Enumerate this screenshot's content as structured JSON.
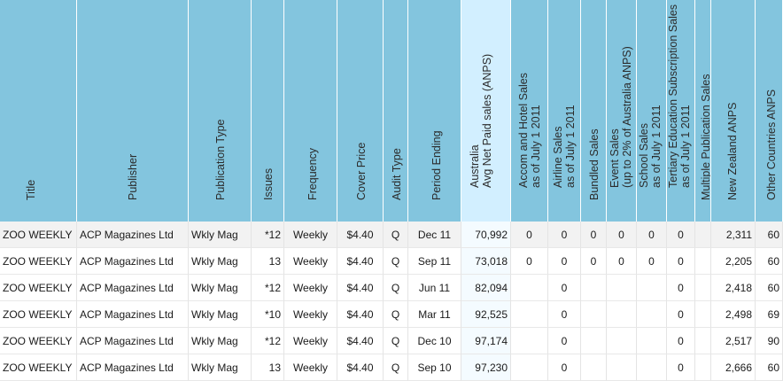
{
  "table": {
    "columns": [
      {
        "key": "title",
        "label": "Title"
      },
      {
        "key": "publisher",
        "label": "Publisher"
      },
      {
        "key": "pub_type",
        "label": "Publication Type"
      },
      {
        "key": "issues",
        "label": "Issues"
      },
      {
        "key": "frequency",
        "label": "Frequency"
      },
      {
        "key": "cover_price",
        "label": "Cover Price"
      },
      {
        "key": "audit_type",
        "label": "Audit Type"
      },
      {
        "key": "period_ending",
        "label": "Period Ending"
      },
      {
        "key": "aus_anps",
        "label": "Australia\nAvg Net Paid sales (ANPS)"
      },
      {
        "key": "accom_hotel",
        "label": "Accom and Hotel Sales\nas of July 1 2011"
      },
      {
        "key": "airline",
        "label": "Airline Sales\nas of July 1 2011"
      },
      {
        "key": "bundled",
        "label": "Bundled Sales"
      },
      {
        "key": "event",
        "label": "Event Sales\n(up to 2% of Australia ANPS)"
      },
      {
        "key": "school",
        "label": "School Sales\nas of July 1 2011"
      },
      {
        "key": "tertiary",
        "label": "Tertiary Education Subscription Sales\nas of July 1 2011"
      },
      {
        "key": "multiple",
        "label": "Multiple Publication Sales"
      },
      {
        "key": "nz_anps",
        "label": "New Zealand ANPS"
      },
      {
        "key": "other_anps",
        "label": "Other Countries ANPS"
      }
    ],
    "rows": [
      [
        "ZOO WEEKLY",
        "ACP Magazines Ltd",
        "Wkly Mag",
        "*12",
        "Weekly",
        "$4.40",
        "Q",
        "Dec 11",
        "70,992",
        "0",
        "0",
        "0",
        "0",
        "0",
        "0",
        "",
        "2,311",
        "60"
      ],
      [
        "ZOO WEEKLY",
        "ACP Magazines Ltd",
        "Wkly Mag",
        "13",
        "Weekly",
        "$4.40",
        "Q",
        "Sep 11",
        "73,018",
        "0",
        "0",
        "0",
        "0",
        "0",
        "0",
        "",
        "2,205",
        "60"
      ],
      [
        "ZOO WEEKLY",
        "ACP Magazines Ltd",
        "Wkly Mag",
        "*12",
        "Weekly",
        "$4.40",
        "Q",
        "Jun 11",
        "82,094",
        "",
        "0",
        "",
        "",
        "",
        "0",
        "",
        "2,418",
        "60"
      ],
      [
        "ZOO WEEKLY",
        "ACP Magazines Ltd",
        "Wkly Mag",
        "*10",
        "Weekly",
        "$4.40",
        "Q",
        "Mar 11",
        "92,525",
        "",
        "0",
        "",
        "",
        "",
        "0",
        "",
        "2,498",
        "69"
      ],
      [
        "ZOO WEEKLY",
        "ACP Magazines Ltd",
        "Wkly Mag",
        "*12",
        "Weekly",
        "$4.40",
        "Q",
        "Dec 10",
        "97,174",
        "",
        "0",
        "",
        "",
        "",
        "0",
        "",
        "2,517",
        "90"
      ],
      [
        "ZOO WEEKLY",
        "ACP Magazines Ltd",
        "Wkly Mag",
        "13",
        "Weekly",
        "$4.40",
        "Q",
        "Sep 10",
        "97,230",
        "",
        "0",
        "",
        "",
        "",
        "0",
        "",
        "2,666",
        "60"
      ]
    ]
  },
  "colors": {
    "header_bg": "#83c5de",
    "selected_header_bg": "#d2efff",
    "shaded_row_bg": "#f2f2f2"
  }
}
